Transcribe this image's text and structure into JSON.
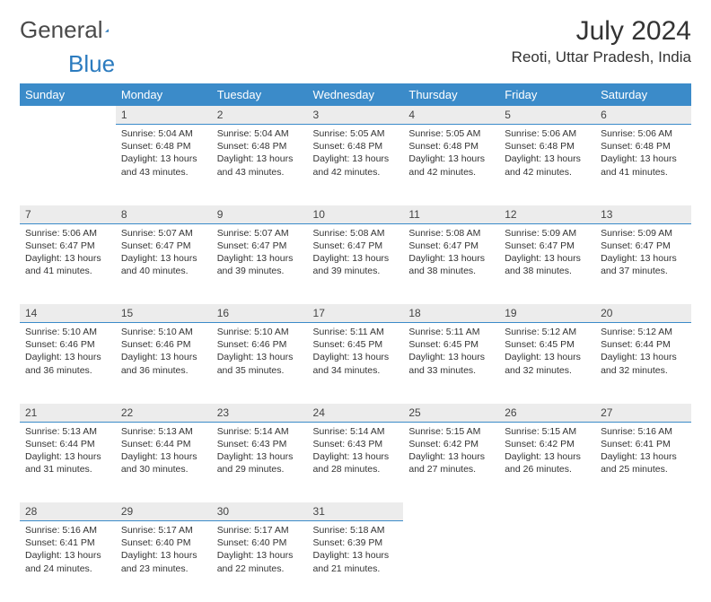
{
  "logo": {
    "text_gray": "General",
    "text_blue": "Blue"
  },
  "title": "July 2024",
  "location": "Reoti, Uttar Pradesh, India",
  "colors": {
    "header_bg": "#3b8bc9",
    "header_text": "#ffffff",
    "daynum_bg": "#ececec",
    "daynum_border": "#3b8bc9",
    "body_text": "#333333"
  },
  "weekdays": [
    "Sunday",
    "Monday",
    "Tuesday",
    "Wednesday",
    "Thursday",
    "Friday",
    "Saturday"
  ],
  "weeks": [
    {
      "nums": [
        "",
        "1",
        "2",
        "3",
        "4",
        "5",
        "6"
      ],
      "cells": [
        null,
        {
          "sr": "5:04 AM",
          "ss": "6:48 PM",
          "dl": "13 hours and 43 minutes."
        },
        {
          "sr": "5:04 AM",
          "ss": "6:48 PM",
          "dl": "13 hours and 43 minutes."
        },
        {
          "sr": "5:05 AM",
          "ss": "6:48 PM",
          "dl": "13 hours and 42 minutes."
        },
        {
          "sr": "5:05 AM",
          "ss": "6:48 PM",
          "dl": "13 hours and 42 minutes."
        },
        {
          "sr": "5:06 AM",
          "ss": "6:48 PM",
          "dl": "13 hours and 42 minutes."
        },
        {
          "sr": "5:06 AM",
          "ss": "6:48 PM",
          "dl": "13 hours and 41 minutes."
        }
      ]
    },
    {
      "nums": [
        "7",
        "8",
        "9",
        "10",
        "11",
        "12",
        "13"
      ],
      "cells": [
        {
          "sr": "5:06 AM",
          "ss": "6:47 PM",
          "dl": "13 hours and 41 minutes."
        },
        {
          "sr": "5:07 AM",
          "ss": "6:47 PM",
          "dl": "13 hours and 40 minutes."
        },
        {
          "sr": "5:07 AM",
          "ss": "6:47 PM",
          "dl": "13 hours and 39 minutes."
        },
        {
          "sr": "5:08 AM",
          "ss": "6:47 PM",
          "dl": "13 hours and 39 minutes."
        },
        {
          "sr": "5:08 AM",
          "ss": "6:47 PM",
          "dl": "13 hours and 38 minutes."
        },
        {
          "sr": "5:09 AM",
          "ss": "6:47 PM",
          "dl": "13 hours and 38 minutes."
        },
        {
          "sr": "5:09 AM",
          "ss": "6:47 PM",
          "dl": "13 hours and 37 minutes."
        }
      ]
    },
    {
      "nums": [
        "14",
        "15",
        "16",
        "17",
        "18",
        "19",
        "20"
      ],
      "cells": [
        {
          "sr": "5:10 AM",
          "ss": "6:46 PM",
          "dl": "13 hours and 36 minutes."
        },
        {
          "sr": "5:10 AM",
          "ss": "6:46 PM",
          "dl": "13 hours and 36 minutes."
        },
        {
          "sr": "5:10 AM",
          "ss": "6:46 PM",
          "dl": "13 hours and 35 minutes."
        },
        {
          "sr": "5:11 AM",
          "ss": "6:45 PM",
          "dl": "13 hours and 34 minutes."
        },
        {
          "sr": "5:11 AM",
          "ss": "6:45 PM",
          "dl": "13 hours and 33 minutes."
        },
        {
          "sr": "5:12 AM",
          "ss": "6:45 PM",
          "dl": "13 hours and 32 minutes."
        },
        {
          "sr": "5:12 AM",
          "ss": "6:44 PM",
          "dl": "13 hours and 32 minutes."
        }
      ]
    },
    {
      "nums": [
        "21",
        "22",
        "23",
        "24",
        "25",
        "26",
        "27"
      ],
      "cells": [
        {
          "sr": "5:13 AM",
          "ss": "6:44 PM",
          "dl": "13 hours and 31 minutes."
        },
        {
          "sr": "5:13 AM",
          "ss": "6:44 PM",
          "dl": "13 hours and 30 minutes."
        },
        {
          "sr": "5:14 AM",
          "ss": "6:43 PM",
          "dl": "13 hours and 29 minutes."
        },
        {
          "sr": "5:14 AM",
          "ss": "6:43 PM",
          "dl": "13 hours and 28 minutes."
        },
        {
          "sr": "5:15 AM",
          "ss": "6:42 PM",
          "dl": "13 hours and 27 minutes."
        },
        {
          "sr": "5:15 AM",
          "ss": "6:42 PM",
          "dl": "13 hours and 26 minutes."
        },
        {
          "sr": "5:16 AM",
          "ss": "6:41 PM",
          "dl": "13 hours and 25 minutes."
        }
      ]
    },
    {
      "nums": [
        "28",
        "29",
        "30",
        "31",
        "",
        "",
        ""
      ],
      "cells": [
        {
          "sr": "5:16 AM",
          "ss": "6:41 PM",
          "dl": "13 hours and 24 minutes."
        },
        {
          "sr": "5:17 AM",
          "ss": "6:40 PM",
          "dl": "13 hours and 23 minutes."
        },
        {
          "sr": "5:17 AM",
          "ss": "6:40 PM",
          "dl": "13 hours and 22 minutes."
        },
        {
          "sr": "5:18 AM",
          "ss": "6:39 PM",
          "dl": "13 hours and 21 minutes."
        },
        null,
        null,
        null
      ]
    }
  ],
  "labels": {
    "sunrise": "Sunrise: ",
    "sunset": "Sunset: ",
    "daylight": "Daylight: "
  }
}
